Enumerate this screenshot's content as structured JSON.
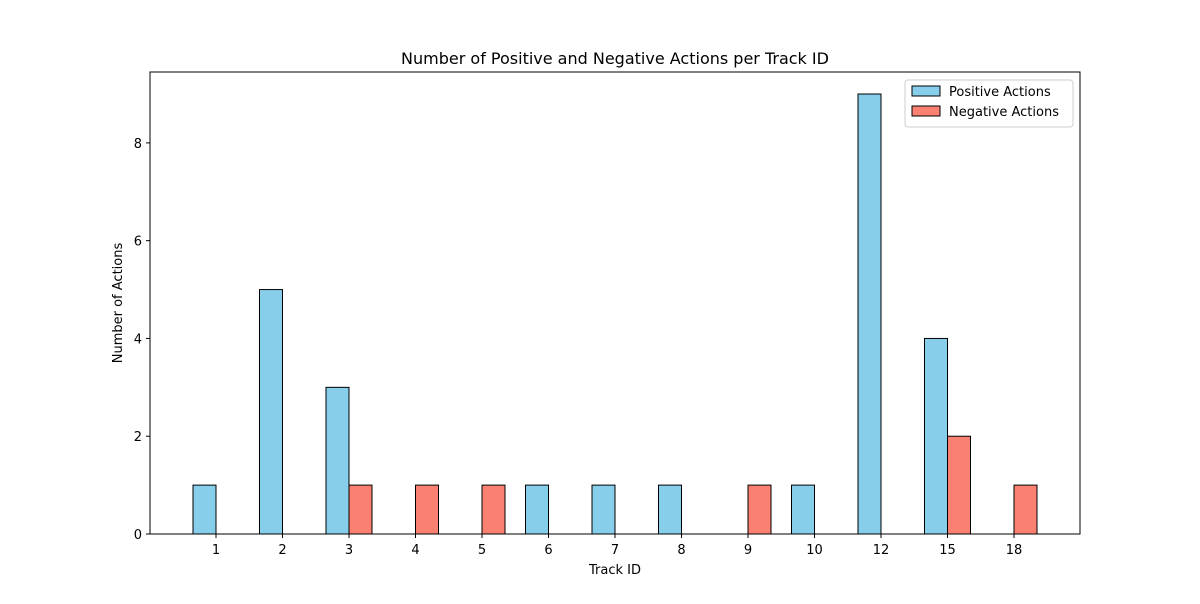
{
  "chart_data": {
    "type": "bar",
    "title": "Number of Positive and Negative Actions per Track ID",
    "xlabel": "Track ID",
    "ylabel": "Number of Actions",
    "categories": [
      "1",
      "2",
      "3",
      "4",
      "5",
      "6",
      "7",
      "8",
      "9",
      "10",
      "12",
      "15",
      "18"
    ],
    "series": [
      {
        "name": "Positive Actions",
        "color": "#87ceeb",
        "values": [
          1,
          5,
          3,
          0,
          0,
          1,
          1,
          1,
          0,
          1,
          9,
          4,
          0
        ]
      },
      {
        "name": "Negative Actions",
        "color": "#fa8072",
        "values": [
          0,
          0,
          1,
          1,
          1,
          0,
          0,
          0,
          1,
          0,
          0,
          2,
          1
        ]
      }
    ],
    "ylim": [
      0,
      9.45
    ],
    "yticks": [
      0,
      2,
      4,
      6,
      8
    ],
    "grid": false,
    "legend_position": "top-right"
  }
}
